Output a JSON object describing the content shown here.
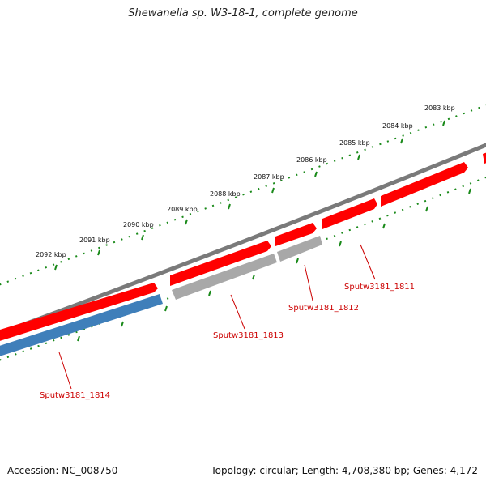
{
  "title": "Shewanella sp. W3-18-1, complete genome",
  "accession": "Accession: NC_008750",
  "summary": "Topology: circular; Length: 4,708,380 bp; Genes: 4,172",
  "ticks": [
    "2083 kbp",
    "2084 kbp",
    "2085 kbp",
    "2086 kbp",
    "2087 kbp",
    "2088 kbp",
    "2089 kbp",
    "2090 kbp",
    "2091 kbp",
    "2092 kbp"
  ],
  "genes": [
    {
      "id": "Sputw3181_1811",
      "strand": "forward",
      "color": "#ff0000"
    },
    {
      "id": "Sputw3181_1812",
      "strand": "forward",
      "color": "#ff0000"
    },
    {
      "id": "Sputw3181_1813",
      "strand": "forward",
      "color": "#ff0000"
    },
    {
      "id": "Sputw3181_1814",
      "strand": "forward",
      "color": "#ff0000"
    }
  ],
  "colors": {
    "backbone": "#7a7a7a",
    "forward_cds": "#ff0000",
    "reverse_other": "#a8a8a8",
    "reverse_blue": "#3f7fba",
    "ticks": "#1a8a1a"
  }
}
